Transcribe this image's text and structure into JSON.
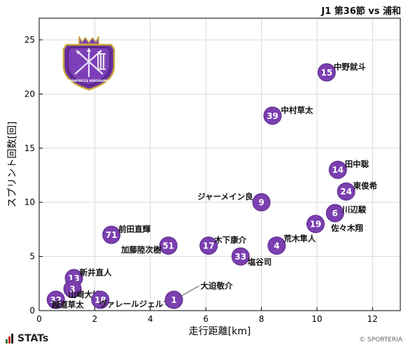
{
  "header": {
    "match_title": "J1 第36節 vs 浦和"
  },
  "footer": {
    "brand": "STATs",
    "copyright": "© SPORTERIA"
  },
  "team_logo": {
    "name": "sanfrecce-hiroshima-crest",
    "text": "SANFRECCE HIROSHIMA"
  },
  "colors": {
    "marker": "#7b3fb0",
    "marker_edge": "#5a2a8a",
    "grid": "#d9d9d9",
    "axis": "#000000"
  },
  "chart_data": {
    "type": "scatter",
    "xlabel": "走行距離[km]",
    "ylabel": "スプリント回数[回]",
    "xlim": [
      0,
      13
    ],
    "ylim": [
      0,
      27
    ],
    "xticks": [
      0,
      2,
      4,
      6,
      8,
      10,
      12
    ],
    "yticks": [
      0,
      5,
      10,
      15,
      20,
      25
    ],
    "grid": true,
    "points": [
      {
        "number": "15",
        "name": "中野就斗",
        "x": 10.35,
        "y": 22
      },
      {
        "number": "39",
        "name": "中村草太",
        "x": 8.4,
        "y": 18
      },
      {
        "number": "14",
        "name": "田中聡",
        "x": 10.75,
        "y": 13
      },
      {
        "number": "24",
        "name": "東俊希",
        "x": 11.05,
        "y": 11
      },
      {
        "number": "9",
        "name": "ジャーメイン良",
        "x": 8.0,
        "y": 10
      },
      {
        "number": "6",
        "name": "川辺駿",
        "x": 10.65,
        "y": 9
      },
      {
        "number": "19",
        "name": "佐々木翔",
        "x": 9.95,
        "y": 8
      },
      {
        "number": "71",
        "name": "前田直輝",
        "x": 2.6,
        "y": 7
      },
      {
        "number": "51",
        "name": "加藤陸次樹",
        "x": 4.65,
        "y": 6
      },
      {
        "number": "17",
        "name": "木下康介",
        "x": 6.1,
        "y": 6
      },
      {
        "number": "4",
        "name": "荒木隼人",
        "x": 8.55,
        "y": 6
      },
      {
        "number": "33",
        "name": "塩谷司",
        "x": 7.25,
        "y": 5
      },
      {
        "number": "13",
        "name": "新井直人",
        "x": 1.25,
        "y": 3
      },
      {
        "number": "3",
        "name": "山﨑大地",
        "x": 1.2,
        "y": 2
      },
      {
        "number": "32",
        "name": "越道草太",
        "x": 0.6,
        "y": 1
      },
      {
        "number": "18",
        "name": "ヴァレールジェルマン",
        "x": 2.2,
        "y": 1
      },
      {
        "number": "1",
        "name": "大迫敬介",
        "x": 4.85,
        "y": 1
      }
    ]
  }
}
